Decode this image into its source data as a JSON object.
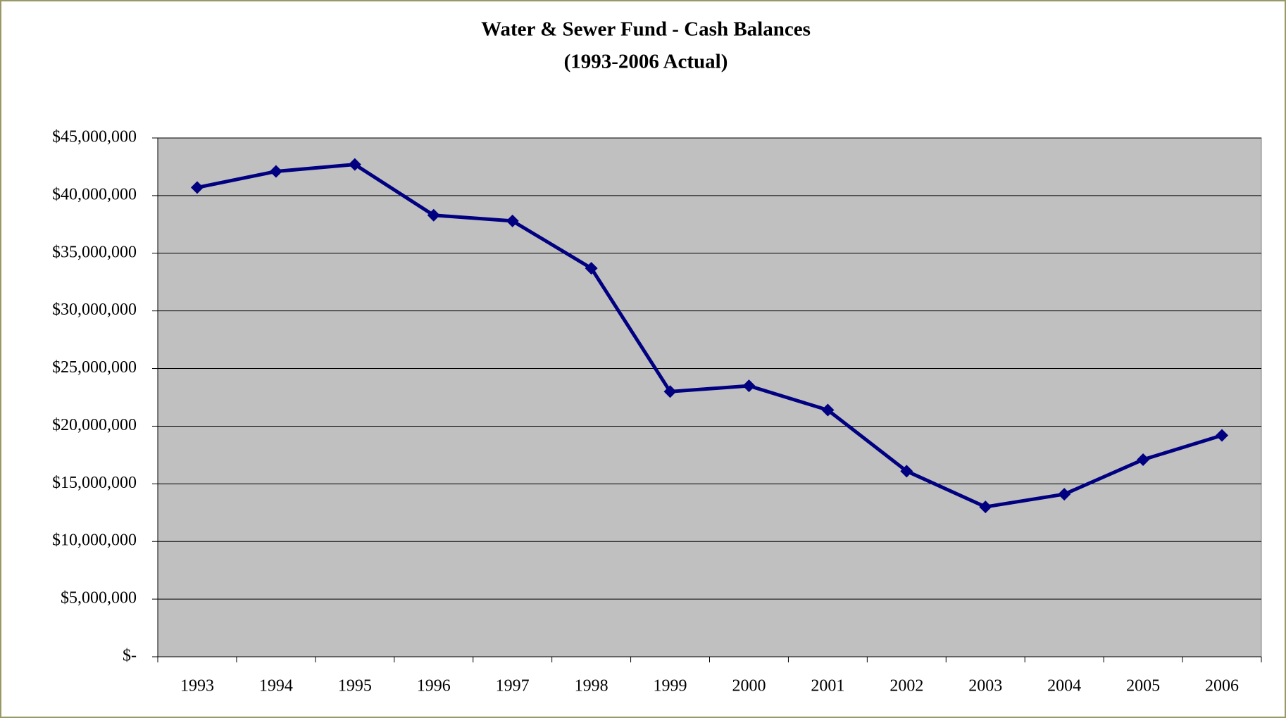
{
  "chart_data": {
    "type": "line",
    "title": "Water & Sewer Fund - Cash Balances",
    "subtitle": "(1993-2006 Actual)",
    "categories": [
      "1993",
      "1994",
      "1995",
      "1996",
      "1997",
      "1998",
      "1999",
      "2000",
      "2001",
      "2002",
      "2003",
      "2004",
      "2005",
      "2006"
    ],
    "series": [
      {
        "name": "Cash Balance",
        "color": "#000080",
        "values": [
          40700000,
          42100000,
          42700000,
          38300000,
          37800000,
          33700000,
          23000000,
          23500000,
          21400000,
          16100000,
          13000000,
          14100000,
          17100000,
          19200000
        ]
      }
    ],
    "ylim": [
      0,
      45000000
    ],
    "yticks": [
      {
        "value": 0,
        "label": "$-"
      },
      {
        "value": 5000000,
        "label": "$5,000,000"
      },
      {
        "value": 10000000,
        "label": "$10,000,000"
      },
      {
        "value": 15000000,
        "label": "$15,000,000"
      },
      {
        "value": 20000000,
        "label": "$20,000,000"
      },
      {
        "value": 25000000,
        "label": "$25,000,000"
      },
      {
        "value": 30000000,
        "label": "$30,000,000"
      },
      {
        "value": 35000000,
        "label": "$35,000,000"
      },
      {
        "value": 40000000,
        "label": "$40,000,000"
      },
      {
        "value": 45000000,
        "label": "$45,000,000"
      }
    ],
    "grid": true,
    "plot_background": "#c0c0c0"
  }
}
